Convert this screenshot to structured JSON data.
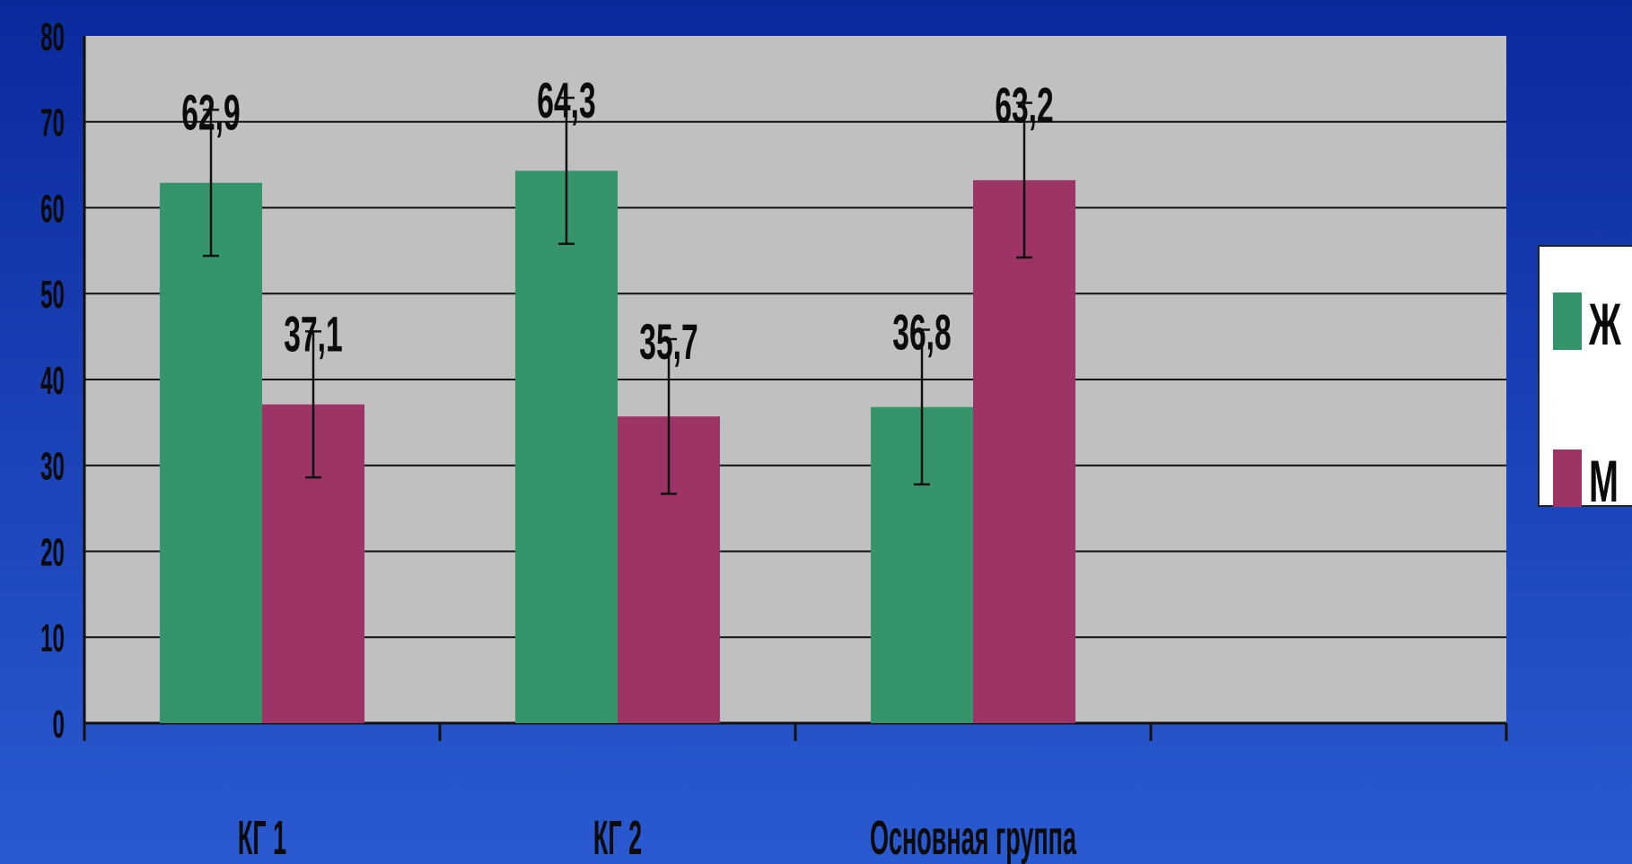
{
  "colors": {
    "background_top": "#0a2a9c",
    "background_bottom": "#2a5ad0",
    "plot_area": "#c0c0c0",
    "gridline": "#111111",
    "female": "#36946a",
    "male": "#9c3566",
    "legend_bg": "#ffffff",
    "text": "#0b0b0b"
  },
  "chart_data": {
    "type": "bar",
    "title": "",
    "xlabel": "",
    "ylabel": "",
    "categories": [
      "КГ 1",
      "КГ 2",
      "Основная группа",
      ""
    ],
    "series": [
      {
        "name": "Ж",
        "color": "#36946a",
        "values": [
          62.9,
          64.3,
          36.8,
          null
        ],
        "labels": [
          "62,9",
          "64,3",
          "36,8",
          ""
        ],
        "error": [
          8.5,
          8.5,
          9.0,
          null
        ]
      },
      {
        "name": "М",
        "color": "#9c3566",
        "values": [
          37.1,
          35.7,
          63.2,
          null
        ],
        "labels": [
          "37,1",
          "35,7",
          "63,2",
          ""
        ],
        "error": [
          8.5,
          9.0,
          9.0,
          null
        ]
      }
    ],
    "ylim": [
      0,
      80
    ],
    "yticks": [
      0,
      10,
      20,
      30,
      40,
      50,
      60,
      70,
      80
    ],
    "grid": true,
    "legend": "right",
    "error_bars": true
  }
}
